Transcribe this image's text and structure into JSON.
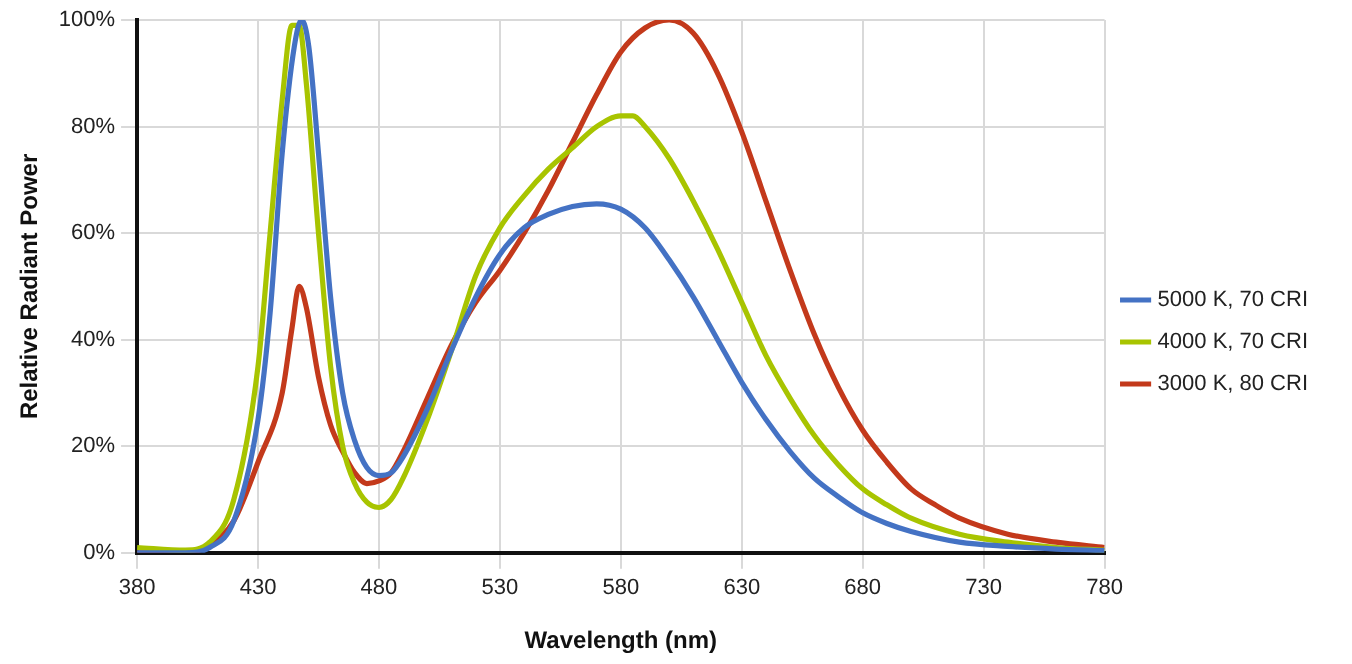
{
  "chart_data": {
    "type": "line",
    "xlabel": "Wavelength (nm)",
    "ylabel": "Relative Radiant Power",
    "xlim": [
      380,
      780
    ],
    "xticks": [
      380,
      430,
      480,
      530,
      580,
      630,
      680,
      730,
      780
    ],
    "ylim": [
      0,
      100
    ],
    "yticks": [
      {
        "value": 0,
        "label": "0%"
      },
      {
        "value": 20,
        "label": "20%"
      },
      {
        "value": 40,
        "label": "40%"
      },
      {
        "value": 60,
        "label": "60%"
      },
      {
        "value": 80,
        "label": "80%"
      },
      {
        "value": 100,
        "label": "100%"
      }
    ],
    "grid": true,
    "legend": "right",
    "marker": "none",
    "line_style": "solid",
    "series": [
      {
        "name": "5000 K, 70 CRI",
        "color": "#4472c4",
        "x": [
          380,
          400,
          410,
          420,
          430,
          435,
          440,
          445,
          448,
          451,
          455,
          460,
          465,
          470,
          475,
          480,
          485,
          490,
          500,
          510,
          520,
          530,
          540,
          550,
          560,
          570,
          580,
          590,
          600,
          610,
          620,
          630,
          640,
          650,
          660,
          670,
          680,
          690,
          700,
          720,
          740,
          760,
          780
        ],
        "values": [
          0,
          0,
          1,
          6,
          25,
          45,
          75,
          95,
          100,
          95,
          75,
          48,
          30,
          21,
          16,
          14.5,
          15,
          18,
          27,
          38,
          48,
          56,
          61,
          63.5,
          65,
          65.5,
          64.5,
          61,
          55,
          48,
          40,
          32,
          25,
          19,
          14,
          10.5,
          7.5,
          5.5,
          4,
          2,
          1.2,
          0.7,
          0.4
        ]
      },
      {
        "name": "4000 K, 70 CRI",
        "color": "#a8c400",
        "x": [
          380,
          400,
          410,
          420,
          430,
          435,
          440,
          444,
          447,
          450,
          455,
          460,
          465,
          470,
          475,
          480,
          485,
          490,
          500,
          510,
          520,
          530,
          540,
          550,
          560,
          570,
          580,
          585,
          590,
          600,
          610,
          620,
          630,
          640,
          650,
          660,
          670,
          680,
          690,
          700,
          720,
          740,
          760,
          780
        ],
        "values": [
          1,
          0.5,
          2,
          10,
          35,
          60,
          85,
          99,
          99,
          88,
          60,
          35,
          20,
          13,
          9.5,
          8.5,
          10,
          14,
          25,
          38,
          52,
          61,
          67,
          72,
          76,
          80,
          82,
          82,
          80,
          74,
          66,
          57,
          47,
          37,
          29,
          22,
          16.5,
          12,
          9,
          6.5,
          3.5,
          2,
          1,
          0.5
        ]
      },
      {
        "name": "3000 K, 80 CRI",
        "color": "#c3391b",
        "x": [
          380,
          400,
          410,
          420,
          430,
          440,
          444,
          447,
          450,
          455,
          460,
          465,
          470,
          475,
          480,
          485,
          490,
          500,
          510,
          520,
          530,
          540,
          550,
          560,
          570,
          580,
          590,
          600,
          610,
          620,
          630,
          640,
          650,
          660,
          670,
          680,
          690,
          700,
          710,
          720,
          740,
          760,
          780
        ],
        "values": [
          0,
          0,
          1.5,
          6,
          17,
          30,
          42,
          50,
          46,
          33,
          24,
          19,
          15,
          13,
          13.5,
          15,
          19,
          29,
          39,
          47,
          53,
          60,
          68,
          77,
          86,
          94,
          98.5,
          100,
          97.5,
          90,
          79,
          66,
          53,
          41,
          31,
          23,
          17,
          12,
          9,
          6.5,
          3.5,
          2,
          1
        ]
      }
    ]
  }
}
